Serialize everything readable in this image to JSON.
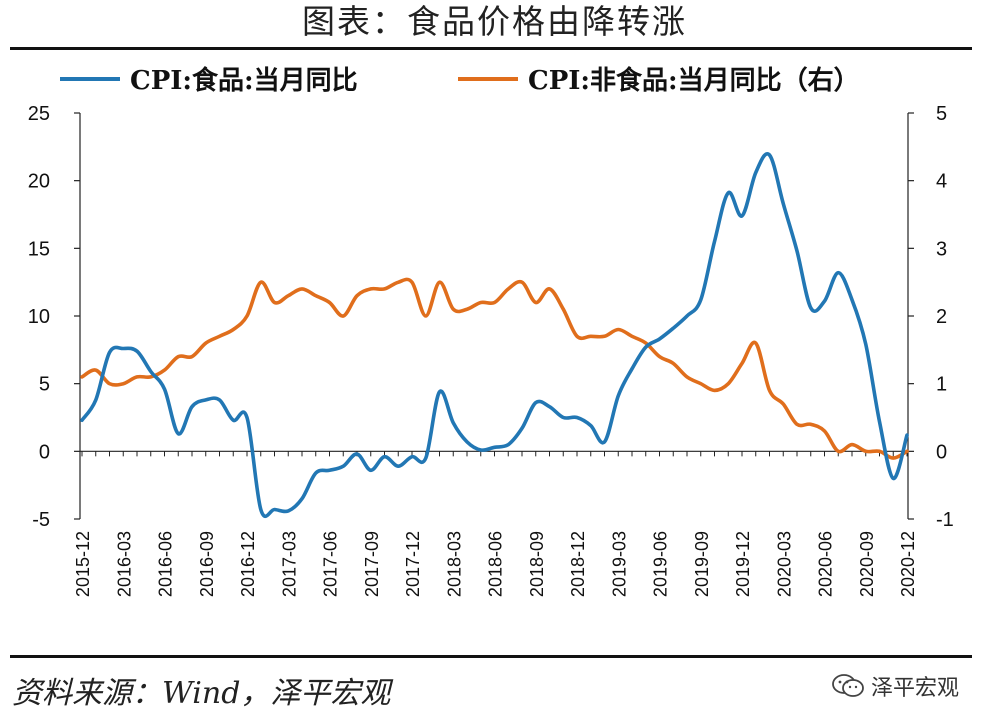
{
  "title": "图表：食品价格由降转涨",
  "source": "资料来源：Wind，泽平宏观",
  "watermark": "泽平宏观",
  "icons": {
    "watermark_icon": "wechat-icon"
  },
  "colors": {
    "food": "#2277b4",
    "nonfood": "#e06e1c",
    "axis": "#222222",
    "rule": "#111111"
  },
  "chart_data": {
    "type": "line",
    "title": "图表：食品价格由降转涨",
    "x": [
      "2015-12",
      "2016-01",
      "2016-02",
      "2016-03",
      "2016-04",
      "2016-05",
      "2016-06",
      "2016-07",
      "2016-08",
      "2016-09",
      "2016-10",
      "2016-11",
      "2016-12",
      "2017-01",
      "2017-02",
      "2017-03",
      "2017-04",
      "2017-05",
      "2017-06",
      "2017-07",
      "2017-08",
      "2017-09",
      "2017-10",
      "2017-11",
      "2017-12",
      "2018-01",
      "2018-02",
      "2018-03",
      "2018-04",
      "2018-05",
      "2018-06",
      "2018-07",
      "2018-08",
      "2018-09",
      "2018-10",
      "2018-11",
      "2018-12",
      "2019-01",
      "2019-02",
      "2019-03",
      "2019-04",
      "2019-05",
      "2019-06",
      "2019-07",
      "2019-08",
      "2019-09",
      "2019-10",
      "2019-11",
      "2019-12",
      "2020-01",
      "2020-02",
      "2020-03",
      "2020-04",
      "2020-05",
      "2020-06",
      "2020-07",
      "2020-08",
      "2020-09",
      "2020-10",
      "2020-11",
      "2020-12"
    ],
    "x_tick_labels": [
      "2015-12",
      "2016-03",
      "2016-06",
      "2016-09",
      "2016-12",
      "2017-03",
      "2017-06",
      "2017-09",
      "2017-12",
      "2018-03",
      "2018-06",
      "2018-09",
      "2018-12",
      "2019-03",
      "2019-06",
      "2019-09",
      "2019-12",
      "2020-03",
      "2020-06",
      "2020-09",
      "2020-12"
    ],
    "series": [
      {
        "name": "CPI:食品:当月同比",
        "axis": "left",
        "values": [
          2.3,
          3.8,
          7.3,
          7.6,
          7.4,
          5.9,
          4.6,
          1.3,
          3.3,
          3.8,
          3.8,
          2.3,
          2.5,
          -4.3,
          -4.3,
          -4.4,
          -3.5,
          -1.6,
          -1.4,
          -1.1,
          -0.2,
          -1.4,
          -0.4,
          -1.1,
          -0.4,
          -0.5,
          4.4,
          2.1,
          0.7,
          0.1,
          0.3,
          0.5,
          1.7,
          3.6,
          3.3,
          2.5,
          2.5,
          1.9,
          0.7,
          4.1,
          6.1,
          7.7,
          8.3,
          9.1,
          10.0,
          11.2,
          15.5,
          19.1,
          17.4,
          20.6,
          21.9,
          18.3,
          14.8,
          10.6,
          11.1,
          13.2,
          11.2,
          7.9,
          2.2,
          -2.0,
          1.2
        ]
      },
      {
        "name": "CPI:非食品:当月同比（右）",
        "axis": "right",
        "values": [
          1.1,
          1.2,
          1.0,
          1.0,
          1.1,
          1.1,
          1.2,
          1.4,
          1.4,
          1.6,
          1.7,
          1.8,
          2.0,
          2.5,
          2.2,
          2.3,
          2.4,
          2.3,
          2.2,
          2.0,
          2.3,
          2.4,
          2.4,
          2.5,
          2.5,
          2.0,
          2.5,
          2.1,
          2.1,
          2.2,
          2.2,
          2.4,
          2.5,
          2.2,
          2.4,
          2.1,
          1.7,
          1.7,
          1.7,
          1.8,
          1.7,
          1.6,
          1.4,
          1.3,
          1.1,
          1.0,
          0.9,
          1.0,
          1.3,
          1.6,
          0.9,
          0.7,
          0.4,
          0.4,
          0.3,
          0.0,
          0.1,
          0.0,
          0.0,
          -0.1,
          0.0
        ]
      }
    ],
    "y_left": {
      "ylim": [
        -5,
        25
      ],
      "ticks": [
        -5,
        0,
        5,
        10,
        15,
        20,
        25
      ]
    },
    "y_right": {
      "ylim": [
        -1,
        5
      ],
      "ticks": [
        -1,
        0,
        1,
        2,
        3,
        4,
        5
      ]
    },
    "legend_position": "top",
    "grid": false
  }
}
